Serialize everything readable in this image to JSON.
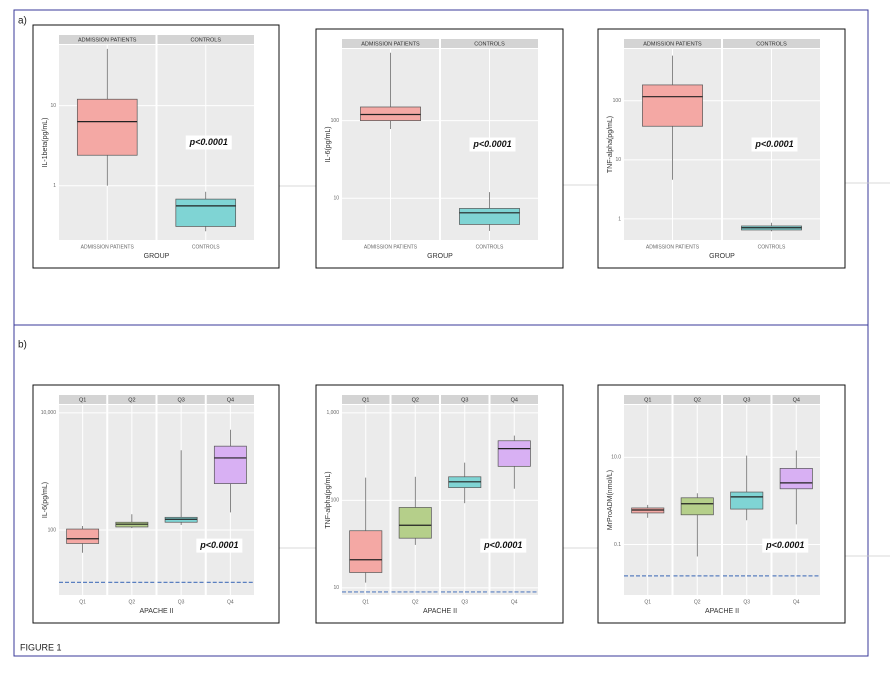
{
  "labels": {
    "a": "a)",
    "b": "b)",
    "figure": "FIGURE 1"
  },
  "chart_data": [
    {
      "type": "box",
      "categories": [
        "ADMISSION PATIENTS",
        "CONTROLS"
      ],
      "y_label": "IL-1beta(pg/mL)",
      "x_label": "GROUP",
      "annotation": "p<0.0001",
      "log_scale": true,
      "ylim": [
        0.21,
        57
      ],
      "yticks": [
        1,
        10
      ],
      "colors": [
        "#f4a8a4",
        "#7fd4d4"
      ],
      "boxes": [
        {
          "whislo": 1,
          "q1": 2.4,
          "med": 6.3,
          "q3": 12,
          "whishi": 51
        },
        {
          "whislo": 0.27,
          "q1": 0.31,
          "med": 0.56,
          "q3": 0.68,
          "whishi": 0.84
        }
      ]
    },
    {
      "type": "box",
      "categories": [
        "ADMISSION PATIENTS",
        "CONTROLS"
      ],
      "y_label": "IL-6(pg/mL)",
      "x_label": "GROUP",
      "annotation": "p<0.0001",
      "log_scale": true,
      "ylim": [
        2.9,
        838
      ],
      "yticks": [
        10,
        100
      ],
      "colors": [
        "#f4a8a4",
        "#7fd4d4"
      ],
      "boxes": [
        {
          "whislo": 78,
          "q1": 100,
          "med": 120,
          "q3": 150,
          "whishi": 750
        },
        {
          "whislo": 3.8,
          "q1": 4.6,
          "med": 6.5,
          "q3": 7.4,
          "whishi": 12
        }
      ]
    },
    {
      "type": "box",
      "categories": [
        "ADMISSION PATIENTS",
        "CONTROLS"
      ],
      "y_label": "TNF-alpha(pg/mL)",
      "x_label": "GROUP",
      "annotation": "p<0.0001",
      "log_scale": true,
      "ylim": [
        0.44,
        750
      ],
      "yticks": [
        1,
        10,
        100
      ],
      "colors": [
        "#f4a8a4",
        "#7fd4d4"
      ],
      "boxes": [
        {
          "whislo": 4.6,
          "q1": 37,
          "med": 117,
          "q3": 185,
          "whishi": 580
        },
        {
          "whislo": 0.62,
          "q1": 0.65,
          "med": 0.71,
          "q3": 0.76,
          "whishi": 0.86
        }
      ]
    },
    {
      "type": "box",
      "categories": [
        "Q1",
        "Q2",
        "Q3",
        "Q4"
      ],
      "y_label": "IL-6(pg/mL)",
      "x_label": "APACHE II",
      "annotation": "p<0.0001",
      "log_scale": true,
      "ylim": [
        7.8,
        13600
      ],
      "yticks": [
        100,
        {
          "value": 10000,
          "label": "10,000"
        }
      ],
      "reference_line": 12.8,
      "colors": [
        "#f4a8a4",
        "#b5cf8a",
        "#7fd4d4",
        "#d8b0f3"
      ],
      "boxes": [
        {
          "whislo": 41,
          "q1": 59,
          "med": 71,
          "q3": 104,
          "whishi": 117
        },
        {
          "whislo": 108,
          "q1": 113,
          "med": 126,
          "q3": 136,
          "whishi": 186
        },
        {
          "whislo": 122,
          "q1": 136,
          "med": 153,
          "q3": 165,
          "whishi": 2300
        },
        {
          "whislo": 200,
          "q1": 620,
          "med": 1700,
          "q3": 2700,
          "whishi": 5150
        }
      ]
    },
    {
      "type": "box",
      "categories": [
        "Q1",
        "Q2",
        "Q3",
        "Q4"
      ],
      "y_label": "TNF-alpha(pg/mL)",
      "x_label": "APACHE II",
      "annotation": "p<0.0001",
      "log_scale": true,
      "ylim": [
        8.3,
        1230
      ],
      "yticks": [
        10,
        100,
        {
          "value": 1000,
          "label": "1,000"
        }
      ],
      "reference_line": 9,
      "colors": [
        "#f4a8a4",
        "#b5cf8a",
        "#7fd4d4",
        "#d8b0f3"
      ],
      "boxes": [
        {
          "whislo": 11.5,
          "q1": 15,
          "med": 21,
          "q3": 45,
          "whishi": 182
        },
        {
          "whislo": 31,
          "q1": 37,
          "med": 52,
          "q3": 83,
          "whishi": 186
        },
        {
          "whislo": 93,
          "q1": 140,
          "med": 163,
          "q3": 186,
          "whishi": 270
        },
        {
          "whislo": 136,
          "q1": 245,
          "med": 390,
          "q3": 480,
          "whishi": 550
        }
      ]
    },
    {
      "type": "box",
      "categories": [
        "Q1",
        "Q2",
        "Q3",
        "Q4"
      ],
      "y_label": "MrProADM(nmol/L)",
      "x_label": "APACHE II",
      "annotation": "p<0.0001",
      "log_scale": true,
      "ylim": [
        0.0069,
        160
      ],
      "yticks": [
        0.1,
        {
          "value": 10,
          "label": "10.0"
        }
      ],
      "reference_line": 0.019,
      "colors": [
        "#f4a8a4",
        "#b5cf8a",
        "#7fd4d4",
        "#d8b0f3"
      ],
      "boxes": [
        {
          "whislo": 0.41,
          "q1": 0.53,
          "med": 0.62,
          "q3": 0.69,
          "whishi": 0.81
        },
        {
          "whislo": 0.053,
          "q1": 0.48,
          "med": 0.86,
          "q3": 1.18,
          "whishi": 1.5
        },
        {
          "whislo": 0.36,
          "q1": 0.65,
          "med": 1.24,
          "q3": 1.6,
          "whishi": 11
        },
        {
          "whislo": 0.29,
          "q1": 1.9,
          "med": 2.6,
          "q3": 5.6,
          "whishi": 14.4
        }
      ]
    }
  ]
}
